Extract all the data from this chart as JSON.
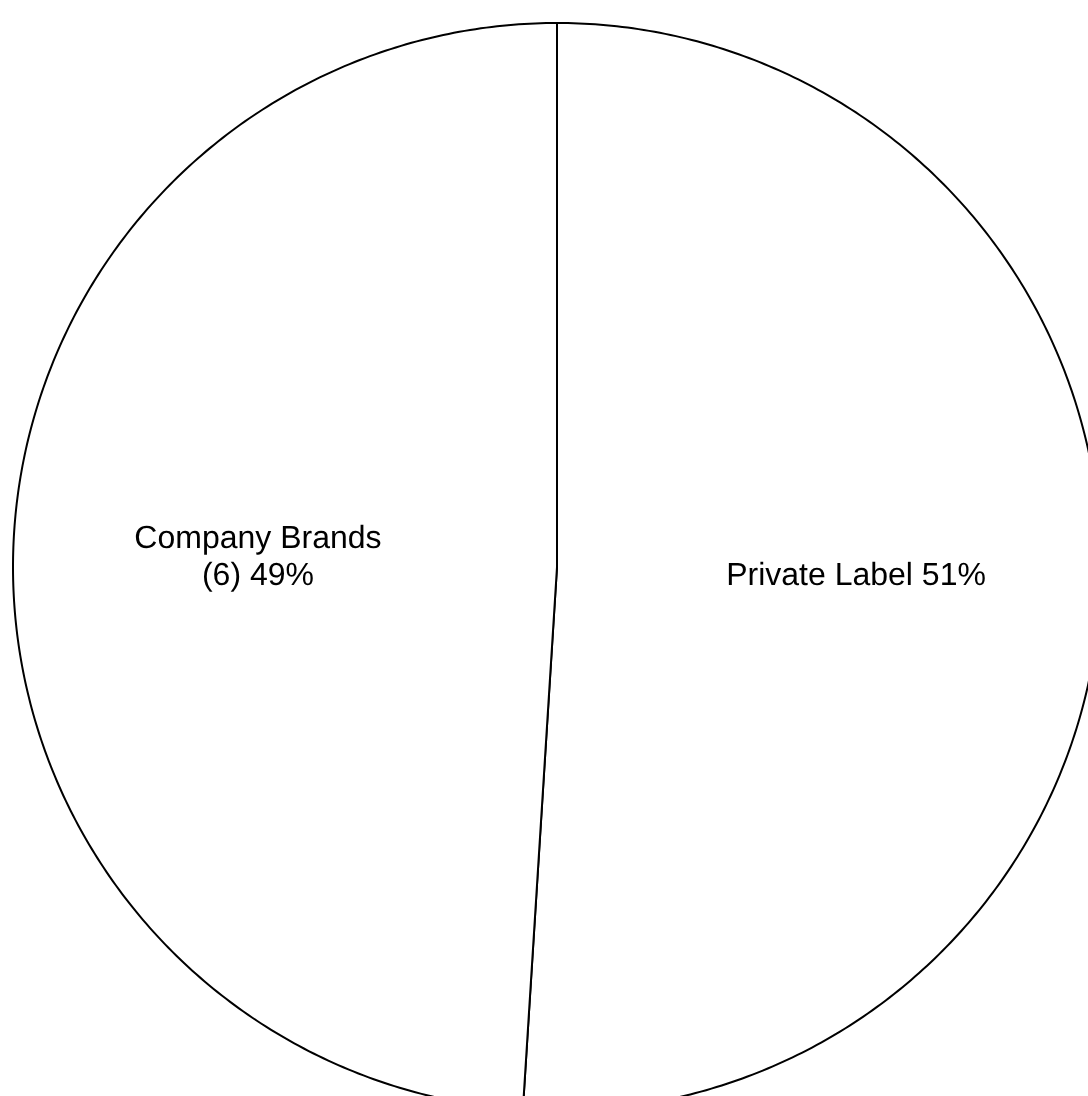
{
  "chart_data": {
    "type": "pie",
    "categories": [
      "Private Label",
      "Company Brands (6)"
    ],
    "values": [
      51,
      49
    ],
    "value_labels": [
      "51%",
      "49%"
    ],
    "colors": [
      "#ffffff",
      "#ffffff"
    ]
  }
}
